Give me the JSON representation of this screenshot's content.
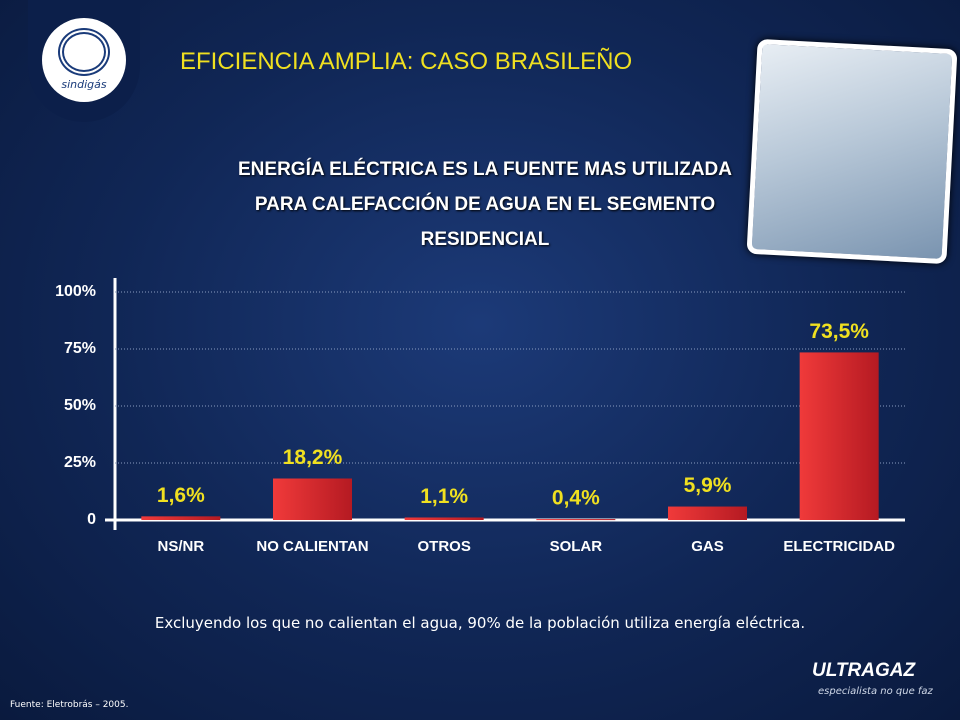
{
  "slide": {
    "heading": "EFICIENCIA AMPLIA: CASO BRASILEÑO",
    "logo_left": "sindigás",
    "logo_right": "ULTRAGAZ",
    "logo_right_tagline": "especialista no que faz",
    "note": "Excluyendo los que no calientan el agua, 90% de la población utiliza energía eléctrica.",
    "source": "Fuente: Eletrobrás – 2005."
  },
  "chart_data": {
    "type": "bar",
    "title": "ENERGÍA ELÉCTRICA ES LA FUENTE MAS UTILIZADA PARA CALEFACCIÓN DE AGUA EN EL SEGMENTO RESIDENCIAL",
    "categories": [
      "NS/NR",
      "NO CALIENTAN",
      "OTROS",
      "SOLAR",
      "GAS",
      "ELECTRICIDAD"
    ],
    "values": [
      1.6,
      18.2,
      1.1,
      0.4,
      5.9,
      73.5
    ],
    "value_labels": [
      "1,6%",
      "18,2%",
      "1,1%",
      "0,4%",
      "5,9%",
      "73,5%"
    ],
    "color": "#e0252b",
    "ylim": [
      0,
      100
    ],
    "yticks": [
      0,
      {
        "value": 25,
        "label": "25%"
      },
      {
        "value": 50,
        "label": "50%"
      },
      {
        "value": 75,
        "label": "75%"
      },
      {
        "value": 100,
        "label": "100%"
      }
    ],
    "grid": true
  }
}
